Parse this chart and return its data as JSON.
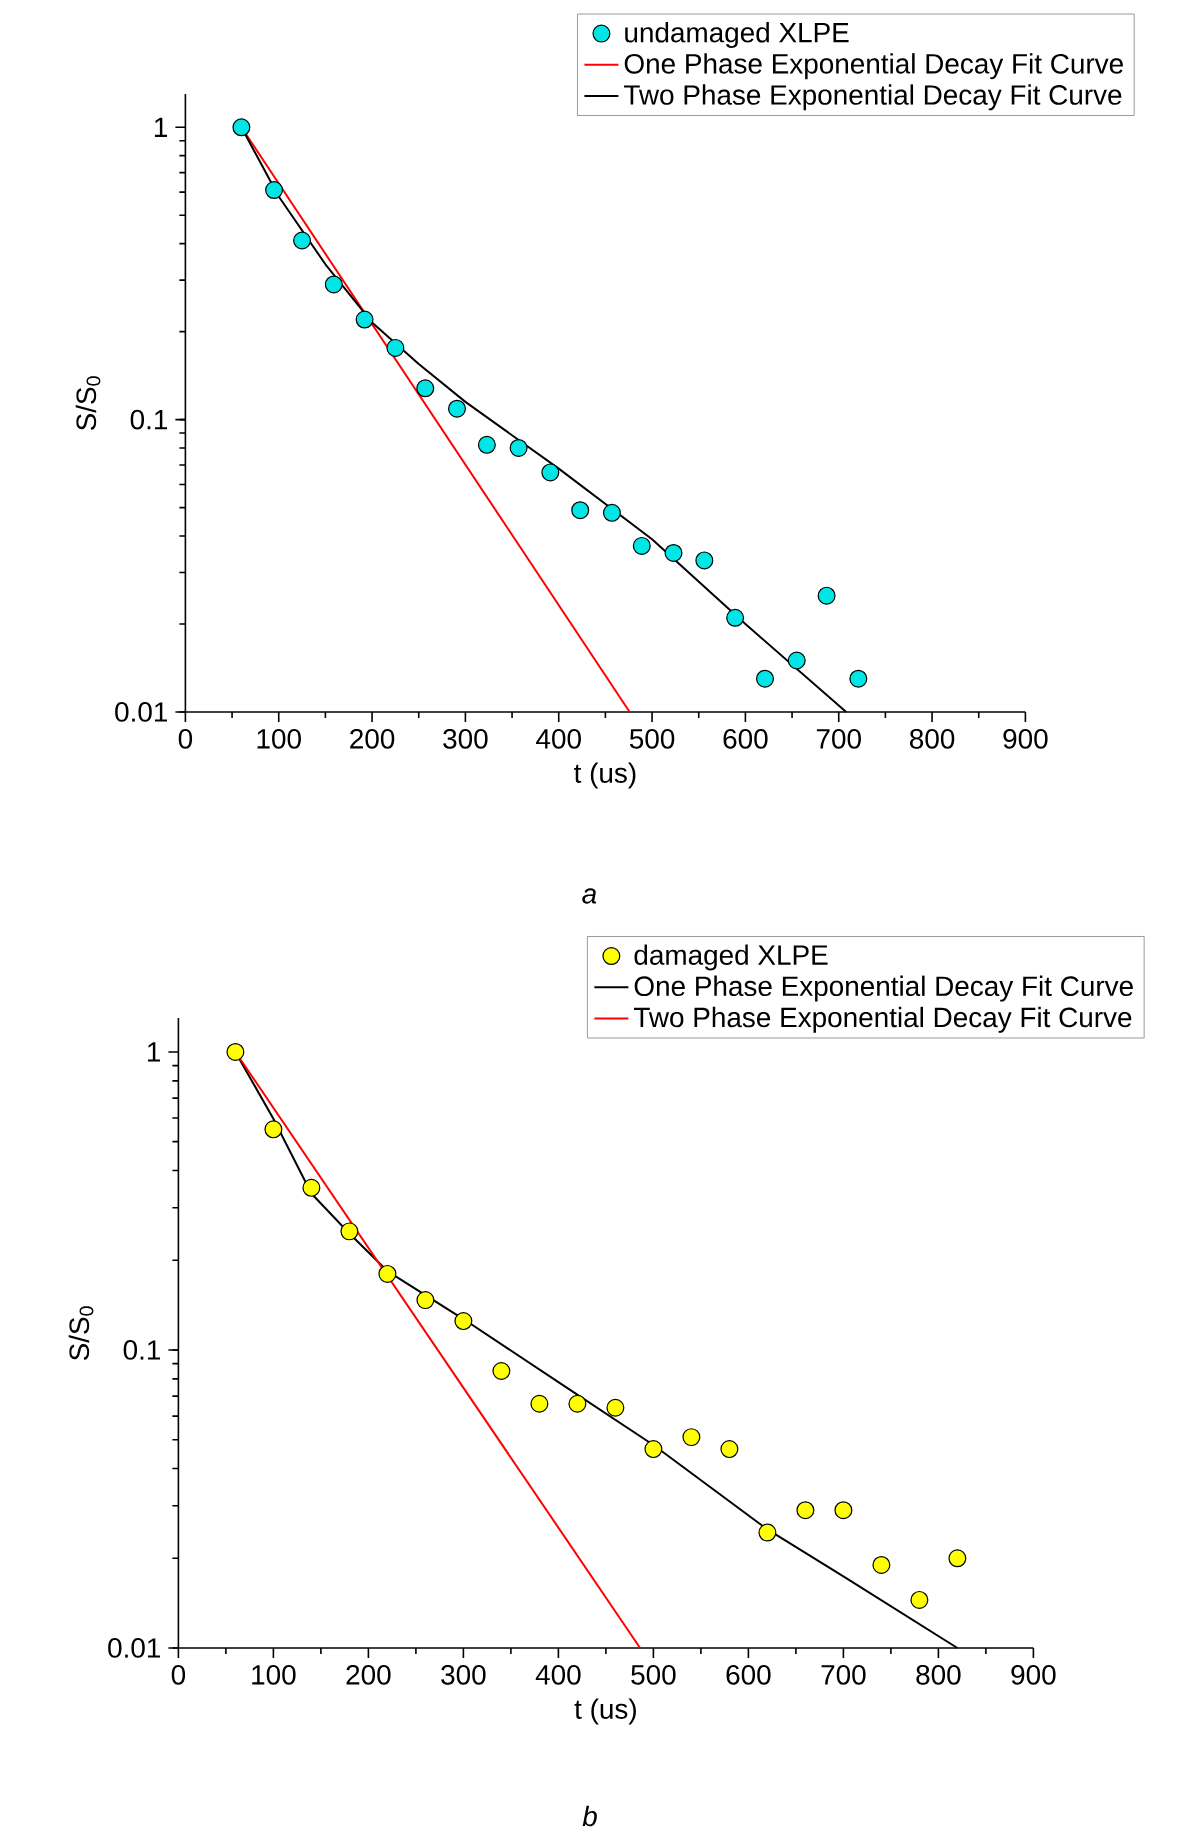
{
  "chart_data": [
    {
      "type": "scatter",
      "xlabel": "t (us)",
      "ylabel": "S/S$_{0}$",
      "log": "y",
      "xlim": [
        0,
        900
      ],
      "ylim": [
        0.01,
        1.3
      ],
      "xticks": [
        0,
        100,
        200,
        300,
        400,
        500,
        600,
        700,
        800,
        900
      ],
      "yticks": [
        0.01,
        0.1,
        1
      ],
      "legend": "top right",
      "annotations": [
        "*a*"
      ],
      "series": [
        {
          "name": "undamaged XLPE",
          "marker": "circle",
          "color": "#00e5e5",
          "x": [
            60,
            95,
            125,
            159,
            192,
            225,
            257,
            291,
            323,
            357,
            391,
            423,
            457,
            489,
            523,
            556,
            589,
            621,
            655,
            687,
            721
          ],
          "values": [
            1,
            0.61,
            0.41,
            0.29,
            0.22,
            0.176,
            0.128,
            0.109,
            0.082,
            0.08,
            0.066,
            0.049,
            0.048,
            0.037,
            0.035,
            0.033,
            0.021,
            0.013,
            0.015,
            0.025,
            0.013
          ]
        },
        {
          "name": "One Phase Exponential Decay Fit Curve",
          "type": "line",
          "marker": "none",
          "color": "#ff0000",
          "x": [
            60,
            476
          ],
          "values": [
            1,
            0.01
          ]
        },
        {
          "name": "Two Phase Exponential Decay Fit Curve",
          "type": "line",
          "marker": "none",
          "color": "#000000",
          "x": [
            60,
            100,
            150,
            200,
            250,
            300,
            400,
            500,
            600,
            708
          ],
          "values": [
            1,
            0.58,
            0.34,
            0.215,
            0.155,
            0.115,
            0.068,
            0.039,
            0.02,
            0.01
          ]
        }
      ]
    },
    {
      "type": "scatter",
      "xlabel": "t (us)",
      "ylabel": "S/S$_{0}$",
      "log": "y",
      "xlim": [
        0,
        900
      ],
      "ylim": [
        0.01,
        1.3
      ],
      "xticks": [
        0,
        100,
        200,
        300,
        400,
        500,
        600,
        700,
        800,
        900
      ],
      "yticks": [
        0.01,
        0.1,
        1
      ],
      "legend": "top right",
      "annotations": [
        "*b*"
      ],
      "series": [
        {
          "name": "damaged XLPE",
          "marker": "circle",
          "color": "#ffff00",
          "x": [
            60,
            100,
            140,
            180,
            220,
            260,
            300,
            340,
            380,
            420,
            460,
            500,
            540,
            580,
            620,
            660,
            700,
            740,
            780,
            820
          ],
          "values": [
            1,
            0.55,
            0.35,
            0.25,
            0.18,
            0.147,
            0.125,
            0.085,
            0.066,
            0.066,
            0.064,
            0.0465,
            0.051,
            0.0465,
            0.0244,
            0.029,
            0.029,
            0.019,
            0.0145,
            0.02
          ]
        },
        {
          "name": "One Phase Exponential Decay Fit Curve",
          "type": "line",
          "marker": "none",
          "color": "#000000",
          "x": [
            60,
            100,
            140,
            180,
            220,
            300,
            400,
            500,
            620,
            700,
            820
          ],
          "values": [
            1,
            0.597,
            0.335,
            0.246,
            0.184,
            0.127,
            0.078,
            0.048,
            0.025,
            0.0174,
            0.01
          ]
        },
        {
          "name": "Two Phase Exponential Decay Fit Curve",
          "type": "line",
          "marker": "none",
          "color": "#ff0000",
          "x": [
            60,
            486
          ],
          "values": [
            1,
            0.01
          ]
        }
      ]
    }
  ]
}
